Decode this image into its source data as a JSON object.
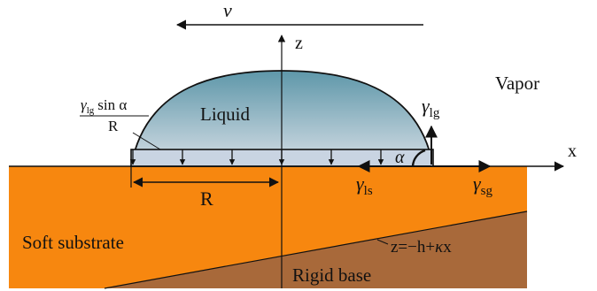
{
  "labels": {
    "velocity": "v",
    "z_axis": "z",
    "x_axis": "x",
    "vapor": "Vapor",
    "liquid": "Liquid",
    "gamma": "γ",
    "sub_lg": "lg",
    "sub_ls": "ls",
    "sub_sg": "sg",
    "sin_alpha": "sin α",
    "frac_denominator": "R",
    "alpha": "α",
    "radius": "R",
    "soft_substrate": "Soft substrate",
    "rigid_base": "Rigid base",
    "base_eq_left": "z=−h+",
    "kappa": "κ",
    "base_eq_right": "x"
  },
  "colors": {
    "substrate": "#f7870f",
    "rigid_base": "#a8693a",
    "liquid_top": "#5e97a9",
    "liquid_bottom": "#d4dce4",
    "stroke": "#111111"
  }
}
